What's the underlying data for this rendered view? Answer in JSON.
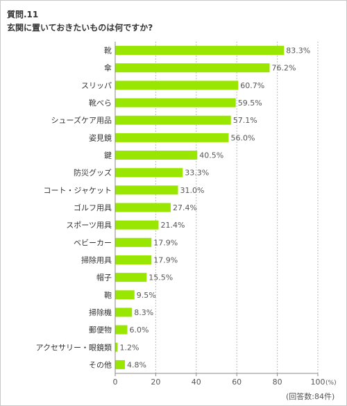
{
  "question": {
    "number": "質問.11",
    "title": "玄関に置いておきたいものは何ですか?"
  },
  "respondents_note": "(回答数:84件)",
  "colors": {
    "bar": "#99e600",
    "axis": "#888888",
    "grid": "#bbbbbb",
    "text": "#333333"
  },
  "chart_data": {
    "type": "bar",
    "orientation": "horizontal",
    "title": "",
    "xlabel": "",
    "ylabel": "",
    "unit": "(%)",
    "xlim": [
      0,
      100
    ],
    "xticks": [
      "0",
      "20",
      "40",
      "60",
      "80",
      "100"
    ],
    "grid": "vertical dashed at 20, 40, 60, 80",
    "categories": [
      "靴",
      "傘",
      "スリッパ",
      "靴べら",
      "シューズケア用品",
      "姿見鏡",
      "鍵",
      "防災グッズ",
      "コート・ジャケット",
      "ゴルフ用具",
      "スポーツ用具",
      "ベビーカー",
      "掃除用具",
      "帽子",
      "鞄",
      "掃除機",
      "郵便物",
      "アクセサリー・眼鏡類",
      "その他"
    ],
    "values": [
      83.3,
      76.2,
      60.7,
      59.5,
      57.1,
      56.0,
      40.5,
      33.3,
      31.0,
      27.4,
      21.4,
      17.9,
      17.9,
      15.5,
      9.5,
      8.3,
      6.0,
      1.2,
      4.8
    ],
    "value_labels": [
      "83.3%",
      "76.2%",
      "60.7%",
      "59.5%",
      "57.1%",
      "56.0%",
      "40.5%",
      "33.3%",
      "31.0%",
      "27.4%",
      "21.4%",
      "17.9%",
      "17.9%",
      "15.5%",
      "9.5%",
      "8.3%",
      "6.0%",
      "1.2%",
      "4.8%"
    ]
  }
}
